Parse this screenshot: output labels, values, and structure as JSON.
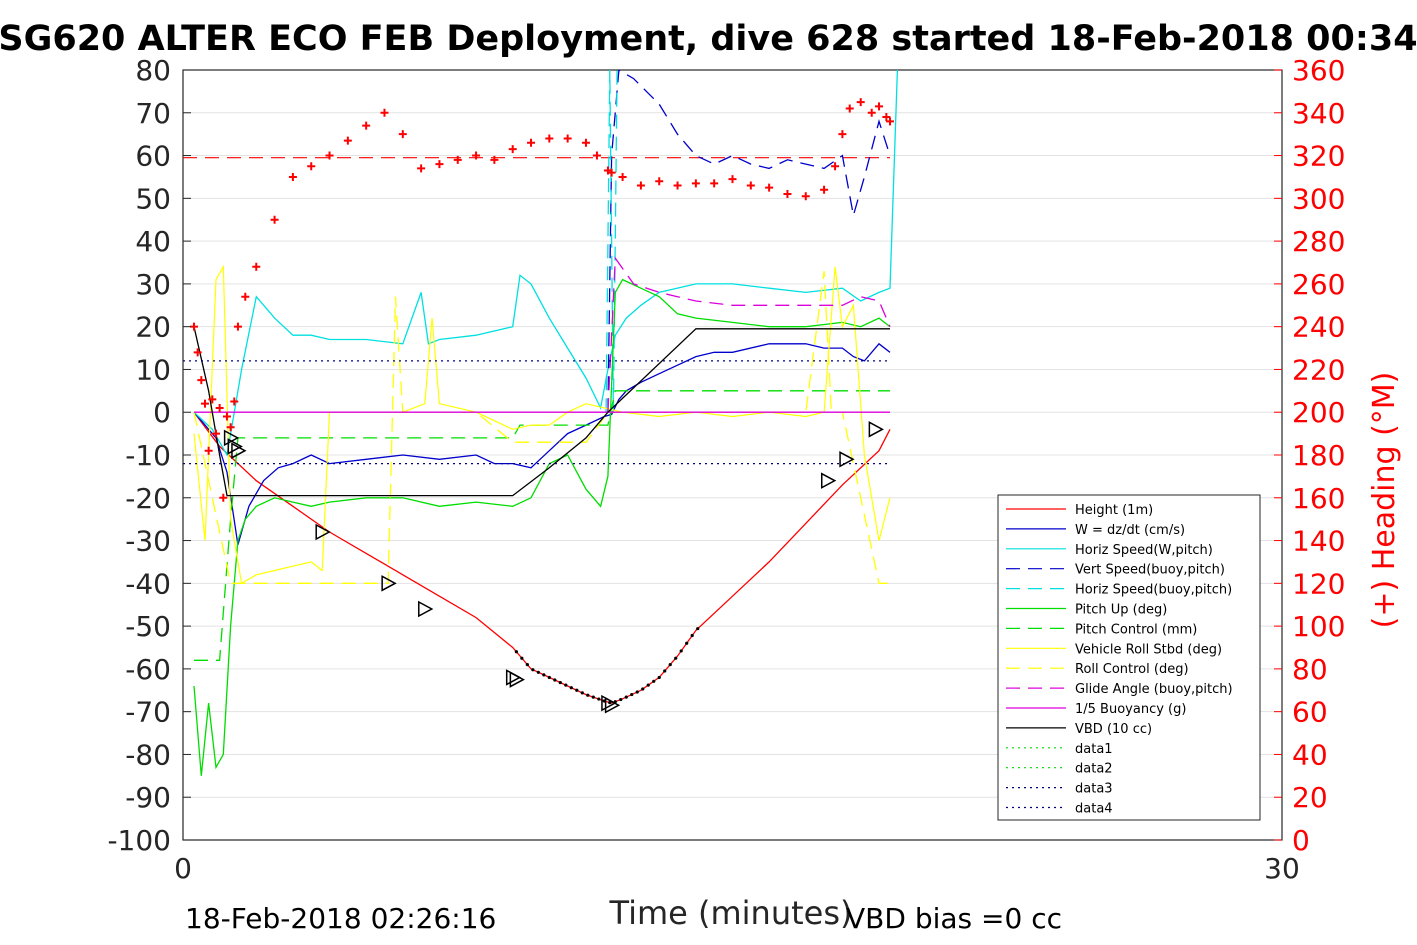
{
  "chart_data": {
    "type": "line",
    "title": "SG620 ALTER ECO FEB Deployment, dive 628 started 18-Feb-2018 00:34",
    "xlabel": "Time (minutes)",
    "ylabel": "",
    "y2label": "(+) Heading (°M)",
    "xlim": [
      0,
      30
    ],
    "ylim": [
      -100,
      80
    ],
    "y2lim": [
      0,
      360
    ],
    "x_ticks": [
      "0",
      "30"
    ],
    "y_ticks": [
      "80",
      "70",
      "60",
      "50",
      "40",
      "30",
      "20",
      "10",
      "0",
      "-10",
      "-20",
      "-30",
      "-40",
      "-50",
      "-60",
      "-70",
      "-80",
      "-90",
      "-100"
    ],
    "y2_ticks": [
      "360",
      "340",
      "320",
      "300",
      "280",
      "260",
      "240",
      "220",
      "200",
      "180",
      "160",
      "140",
      "120",
      "100",
      "80",
      "60",
      "40",
      "20",
      "0"
    ],
    "grid": true,
    "legend_position": "lower-right",
    "footer_left": "18-Feb-2018 02:26:16",
    "footer_right": "VBD bias =0 cc",
    "colors": {
      "height": "#ff0000",
      "w": "#0000cc",
      "hspeed": "#00e0e0",
      "vspeed_buoy": "#0000cc",
      "hspeed_buoy": "#00e0e0",
      "pitch": "#00dd00",
      "pitch_ctrl": "#00dd00",
      "roll": "#ffff00",
      "roll_ctrl": "#ffff00",
      "glide": "#dd00dd",
      "buoyancy": "#dd00dd",
      "vbd": "#000000",
      "heading": "#ff0000"
    },
    "series": [
      {
        "name": "Height (1m)",
        "key": "height",
        "style": "solid",
        "axis": "left",
        "x": [
          0.3,
          1,
          2,
          3,
          4,
          5,
          6,
          7,
          8,
          9,
          9.5,
          10,
          10.5,
          11,
          11.5,
          11.7,
          12,
          12.5,
          13,
          13.5,
          14,
          15,
          16,
          17,
          18,
          19,
          19.3
        ],
        "y": [
          0,
          -8,
          -16,
          -22,
          -28,
          -33,
          -38,
          -43,
          -48,
          -55,
          -60,
          -62,
          -64,
          -66,
          -67.5,
          -68,
          -67,
          -65,
          -62,
          -57,
          -51,
          -43,
          -35,
          -26,
          -17,
          -9,
          -4
        ]
      },
      {
        "name": "W = dz/dt (cm/s)",
        "key": "w",
        "style": "solid",
        "axis": "left",
        "x": [
          0.3,
          0.6,
          0.9,
          1.2,
          1.5,
          1.8,
          2.2,
          2.6,
          3,
          3.5,
          4,
          5,
          6,
          7,
          8,
          8.5,
          9,
          9.5,
          10,
          10.5,
          11,
          11.5,
          11.7,
          11.9,
          12.1,
          12.5,
          13,
          13.5,
          14,
          14.5,
          15,
          16,
          17,
          17.5,
          18,
          18.3,
          18.6,
          19,
          19.3
        ],
        "y": [
          0,
          -3,
          -6,
          -14,
          -31,
          -22,
          -16,
          -13,
          -12,
          -10,
          -12,
          -11,
          -10,
          -11,
          -10,
          -12,
          -12,
          -13,
          -9,
          -5,
          -3,
          -1,
          -0.5,
          3,
          5,
          7,
          9,
          11,
          13,
          14,
          14,
          16,
          16,
          15,
          15,
          13,
          12,
          16,
          14
        ]
      },
      {
        "name": "Horiz Speed(W,pitch)",
        "key": "hspeed",
        "style": "solid",
        "axis": "left",
        "x": [
          0.3,
          0.8,
          1.2,
          1.6,
          2,
          2.5,
          3,
          3.5,
          4,
          5,
          6,
          6.5,
          6.7,
          7,
          8,
          9,
          9.2,
          9.5,
          10,
          10.5,
          11,
          11.4,
          11.6,
          11.8,
          12.1,
          12.5,
          13,
          14,
          15,
          16,
          17,
          18,
          18.5,
          19,
          19.3,
          19.5
        ],
        "y": [
          0,
          -4,
          -10,
          10,
          27,
          22,
          18,
          18,
          17,
          17,
          16,
          28,
          16,
          17,
          18,
          20,
          32,
          30,
          22,
          15,
          8,
          1,
          10,
          18,
          22,
          25,
          28,
          30,
          30,
          29,
          28,
          29,
          26,
          28,
          29,
          80
        ]
      },
      {
        "name": "Vert Speed(buoy,pitch)",
        "key": "vspeed_buoy",
        "style": "dashed",
        "axis": "left",
        "x": [
          11.6,
          11.7,
          11.9,
          12.3,
          13,
          13.5,
          14,
          14.5,
          15,
          15.5,
          16,
          16.5,
          17,
          17.5,
          18,
          18.3,
          18.6,
          19,
          19.3
        ],
        "y": [
          0,
          60,
          80,
          78,
          72,
          65,
          60,
          58,
          60,
          58,
          57,
          59,
          58,
          57,
          60,
          46,
          55,
          68,
          60
        ]
      },
      {
        "name": "Horiz Speed(buoy,pitch)",
        "key": "hspeed_buoy",
        "style": "dashed",
        "axis": "left",
        "x": [
          11.55,
          11.65,
          11.75,
          11.85
        ],
        "y": [
          0,
          80,
          0,
          80
        ]
      },
      {
        "name": "Pitch Up (deg)",
        "key": "pitch",
        "style": "solid",
        "axis": "left",
        "x": [
          0.3,
          0.5,
          0.7,
          0.9,
          1.1,
          1.3,
          1.5,
          1.7,
          2,
          2.5,
          3,
          3.5,
          4,
          5,
          6,
          7,
          8,
          9,
          9.5,
          10,
          10.5,
          11,
          11.4,
          11.6,
          11.8,
          12,
          12.5,
          13,
          13.5,
          14,
          15,
          16,
          17,
          18,
          18.5,
          19,
          19.3
        ],
        "y": [
          -64,
          -85,
          -68,
          -83,
          -80,
          -50,
          -30,
          -25,
          -22,
          -20,
          -21,
          -22,
          -21,
          -20,
          -20,
          -22,
          -21,
          -22,
          -20,
          -12,
          -10,
          -18,
          -22,
          -15,
          28,
          31,
          29,
          27,
          23,
          22,
          21,
          20,
          20,
          21,
          20,
          22,
          20
        ]
      },
      {
        "name": "Pitch Control (mm)",
        "key": "pitch_ctrl",
        "style": "dashed",
        "axis": "left",
        "x": [
          0.3,
          1.0,
          1.3,
          1.5,
          2,
          5,
          8,
          9,
          9.2,
          11.6,
          11.8,
          14,
          18,
          19.3
        ],
        "y": [
          -58,
          -58,
          -25,
          -6,
          -6,
          -6,
          -6,
          -6,
          -3,
          -3,
          5,
          5,
          5,
          5
        ]
      },
      {
        "name": "Vehicle Roll Stbd (deg)",
        "key": "roll",
        "style": "solid",
        "axis": "left",
        "x": [
          0.3,
          0.6,
          0.9,
          1.1,
          1.3,
          1.6,
          2,
          2.5,
          3,
          3.5,
          3.8,
          4,
          5,
          5.5,
          6,
          6.6,
          6.8,
          7,
          8,
          9,
          9.5,
          10,
          10.5,
          11,
          12,
          13,
          14,
          15,
          16,
          17,
          17.5,
          17.8,
          18,
          18.3,
          18.6,
          19,
          19.3
        ],
        "y": [
          -5,
          -30,
          31,
          34,
          -25,
          -40,
          -38,
          -37,
          -36,
          -35,
          -37,
          0,
          0,
          0,
          0,
          2,
          22,
          2,
          0,
          -4,
          -3,
          -3,
          0,
          2,
          0,
          -1,
          0,
          -1,
          0,
          -1,
          0,
          34,
          20,
          25,
          -10,
          -30,
          -20
        ]
      },
      {
        "name": "Roll Control (deg)",
        "key": "roll_ctrl",
        "style": "dashed",
        "axis": "left",
        "x": [
          0.3,
          1.3,
          1.5,
          2,
          5,
          5.6,
          5.8,
          6,
          7,
          8,
          9,
          9.5,
          11,
          11.6,
          12,
          14,
          17,
          17.5,
          17.7,
          18,
          19,
          19.3
        ],
        "y": [
          0,
          -40,
          -40,
          -40,
          -40,
          -40,
          27,
          0,
          0,
          0,
          -7,
          -7,
          -7,
          0,
          0,
          0,
          0,
          33,
          0,
          0,
          -40,
          -40
        ]
      },
      {
        "name": "Glide Angle (buoy,pitch)",
        "key": "glide",
        "style": "dashed",
        "axis": "left",
        "x": [
          11.6,
          11.8,
          12.3,
          13,
          13.5,
          14,
          15,
          16,
          17,
          18,
          18.5,
          19,
          19.3
        ],
        "y": [
          0,
          36,
          30,
          28,
          27,
          26,
          25,
          25,
          25,
          25,
          27,
          26,
          20
        ]
      },
      {
        "name": "1/5 Buoyancy (g)",
        "key": "buoyancy",
        "style": "solid",
        "axis": "left",
        "x": [
          0.3,
          1,
          5,
          9,
          11.6,
          19.3
        ],
        "y": [
          0,
          0,
          0,
          0,
          0,
          0
        ]
      },
      {
        "name": "VBD (10 cc)",
        "key": "vbd",
        "style": "solid",
        "axis": "left",
        "x": [
          0.3,
          0.7,
          1.0,
          1.2,
          2,
          5,
          8,
          9,
          10,
          11,
          11.6,
          14,
          16,
          19.3
        ],
        "y": [
          20,
          5,
          -10,
          -19.5,
          -19.5,
          -19.5,
          -19.5,
          -19.5,
          -13,
          -6,
          0,
          19.5,
          19.5,
          19.5
        ]
      },
      {
        "name": "data1",
        "key": "data1",
        "style": "dotted",
        "axis": "left",
        "x": [],
        "y": []
      },
      {
        "name": "data2",
        "key": "data2",
        "style": "dotted",
        "axis": "left",
        "x": [],
        "y": []
      },
      {
        "name": "data3",
        "key": "data3",
        "style": "dotted",
        "axis": "left",
        "x": [
          0,
          19.3
        ],
        "y": [
          12,
          12
        ]
      },
      {
        "name": "data4",
        "key": "data4",
        "style": "dotted",
        "axis": "left",
        "x": [
          0,
          19.3
        ],
        "y": [
          -12,
          -12
        ]
      }
    ],
    "heading": {
      "axis": "right",
      "reference": 319,
      "x": [
        0.3,
        0.4,
        0.5,
        0.6,
        0.7,
        0.8,
        0.9,
        1.0,
        1.1,
        1.2,
        1.3,
        1.4,
        1.5,
        1.7,
        2,
        2.5,
        3,
        3.5,
        4,
        4.5,
        5,
        5.5,
        6,
        6.5,
        7,
        7.5,
        8,
        8.5,
        9,
        9.5,
        10,
        10.5,
        11,
        11.3,
        11.6,
        11.7,
        12,
        12.5,
        13,
        13.5,
        14,
        14.5,
        15,
        15.5,
        16,
        16.5,
        17,
        17.5,
        17.8,
        18,
        18.2,
        18.5,
        18.8,
        19,
        19.2,
        19.3
      ],
      "y": [
        240,
        228,
        215,
        204,
        182,
        206,
        190,
        202,
        160,
        198,
        193,
        205,
        240,
        254,
        268,
        290,
        310,
        315,
        320,
        327,
        334,
        340,
        330,
        314,
        316,
        318,
        320,
        318,
        323,
        326,
        328,
        328,
        326,
        320,
        313,
        312,
        310,
        306,
        308,
        306,
        307,
        307,
        309,
        306,
        305,
        302,
        301,
        304,
        315,
        330,
        342,
        345,
        340,
        343,
        338,
        336
      ]
    },
    "markers": {
      "x": [
        1.3,
        1.4,
        1.5,
        3.8,
        5.6,
        6.6,
        9.0,
        9.1,
        11.6,
        11.7,
        17.6,
        18.1,
        18.9
      ],
      "y": [
        -6,
        -8,
        -9,
        -28,
        -40,
        -46,
        -62,
        -62.5,
        -68,
        -68.5,
        -16,
        -11,
        -4
      ]
    }
  }
}
